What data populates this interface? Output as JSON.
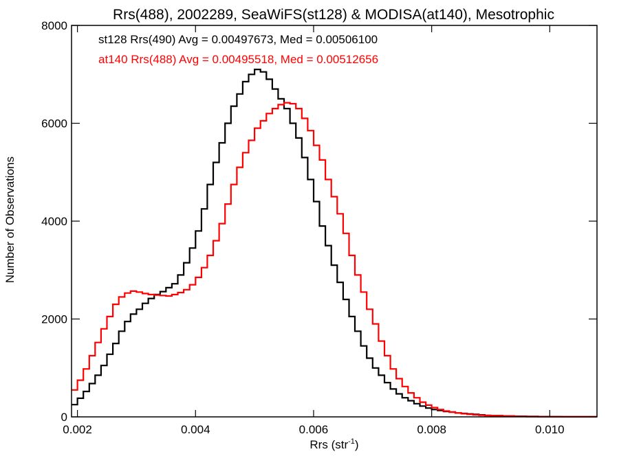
{
  "chart_data": {
    "type": "line",
    "title": "Rrs(488), 2002289, SeaWiFS(st128) & MODISA(at140), Mesotrophic",
    "xlabel": "Rrs (str",
    "xlabel_sup": "-1",
    "xlabel_end": ")",
    "ylabel": "Number of Observations",
    "xlim": [
      0.0019,
      0.0108
    ],
    "ylim": [
      0,
      8000
    ],
    "xticks": [
      0.002,
      0.004,
      0.006,
      0.008,
      0.01
    ],
    "xtick_labels": [
      "0.002",
      "0.004",
      "0.006",
      "0.008",
      "0.010"
    ],
    "yticks": [
      0,
      2000,
      4000,
      6000,
      8000
    ],
    "ytick_labels": [
      "0",
      "2000",
      "4000",
      "6000",
      "8000"
    ],
    "grid": false,
    "legend": "top-left",
    "annotations": [
      {
        "text": "st128 Rrs(490) Avg = 0.00497673, Med = 0.00506100",
        "color": "#000000"
      },
      {
        "text": "at140 Rrs(488) Avg = 0.00495518, Med = 0.00512656",
        "color": "#ff0000"
      }
    ],
    "series": [
      {
        "color": "#000000",
        "x": [
          0.0019,
          0.002,
          0.0021,
          0.0022,
          0.0023,
          0.0024,
          0.0025,
          0.0026,
          0.0027,
          0.0028,
          0.0029,
          0.003,
          0.0031,
          0.0032,
          0.0033,
          0.0034,
          0.0035,
          0.0036,
          0.0037,
          0.0038,
          0.0039,
          0.004,
          0.0041,
          0.0042,
          0.0043,
          0.0044,
          0.0045,
          0.0046,
          0.0047,
          0.0048,
          0.0049,
          0.005,
          0.0051,
          0.0052,
          0.0053,
          0.0054,
          0.0055,
          0.0056,
          0.0057,
          0.0058,
          0.0059,
          0.006,
          0.0061,
          0.0062,
          0.0063,
          0.0064,
          0.0065,
          0.0066,
          0.0067,
          0.0068,
          0.0069,
          0.007,
          0.0071,
          0.0072,
          0.0073,
          0.0074,
          0.0075,
          0.0076,
          0.0077,
          0.0078,
          0.0079,
          0.008,
          0.0081,
          0.0082,
          0.0083,
          0.0084,
          0.0085,
          0.0086,
          0.0087,
          0.0088,
          0.0089,
          0.009,
          0.0092,
          0.0094,
          0.0096,
          0.0098,
          0.01,
          0.0102,
          0.0104,
          0.0106,
          0.0108
        ],
        "y": [
          250,
          380,
          520,
          680,
          850,
          1050,
          1280,
          1500,
          1750,
          1950,
          2100,
          2200,
          2320,
          2420,
          2500,
          2560,
          2640,
          2720,
          2900,
          3150,
          3450,
          3800,
          4250,
          4750,
          5200,
          5600,
          6000,
          6350,
          6600,
          6850,
          7000,
          7100,
          7050,
          6900,
          6700,
          6500,
          6300,
          6000,
          5700,
          5300,
          4850,
          4400,
          3900,
          3500,
          3100,
          2750,
          2400,
          2050,
          1750,
          1450,
          1200,
          1000,
          850,
          700,
          570,
          470,
          390,
          330,
          270,
          220,
          180,
          150,
          130,
          110,
          95,
          80,
          70,
          60,
          50,
          40,
          30,
          25,
          18,
          12,
          8,
          5,
          4,
          3,
          2,
          1,
          1
        ]
      },
      {
        "color": "#ff0000",
        "x": [
          0.0019,
          0.002,
          0.0021,
          0.0022,
          0.0023,
          0.0024,
          0.0025,
          0.0026,
          0.0027,
          0.0028,
          0.0029,
          0.003,
          0.0031,
          0.0032,
          0.0033,
          0.0034,
          0.0035,
          0.0036,
          0.0037,
          0.0038,
          0.0039,
          0.004,
          0.0041,
          0.0042,
          0.0043,
          0.0044,
          0.0045,
          0.0046,
          0.0047,
          0.0048,
          0.0049,
          0.005,
          0.0051,
          0.0052,
          0.0053,
          0.0054,
          0.0055,
          0.0056,
          0.0057,
          0.0058,
          0.0059,
          0.006,
          0.0061,
          0.0062,
          0.0063,
          0.0064,
          0.0065,
          0.0066,
          0.0067,
          0.0068,
          0.0069,
          0.007,
          0.0071,
          0.0072,
          0.0073,
          0.0074,
          0.0075,
          0.0076,
          0.0077,
          0.0078,
          0.0079,
          0.008,
          0.0081,
          0.0082,
          0.0083,
          0.0084,
          0.0085,
          0.0086,
          0.0087,
          0.0088,
          0.0089,
          0.009,
          0.0092,
          0.0094,
          0.0096,
          0.0098,
          0.01,
          0.0102,
          0.0104,
          0.0106,
          0.0108
        ],
        "y": [
          550,
          750,
          980,
          1250,
          1520,
          1800,
          2050,
          2300,
          2450,
          2530,
          2570,
          2550,
          2520,
          2500,
          2490,
          2480,
          2470,
          2500,
          2540,
          2600,
          2700,
          2850,
          3050,
          3300,
          3600,
          3950,
          4350,
          4750,
          5100,
          5400,
          5650,
          5900,
          6050,
          6200,
          6300,
          6380,
          6420,
          6400,
          6300,
          6100,
          5850,
          5550,
          5250,
          4850,
          4500,
          4150,
          3750,
          3300,
          2900,
          2550,
          2200,
          1900,
          1550,
          1250,
          980,
          780,
          620,
          490,
          390,
          300,
          240,
          190,
          150,
          120,
          100,
          80,
          65,
          52,
          42,
          34,
          27,
          22,
          15,
          10,
          6,
          4,
          3,
          2,
          1,
          1,
          1
        ]
      }
    ]
  }
}
